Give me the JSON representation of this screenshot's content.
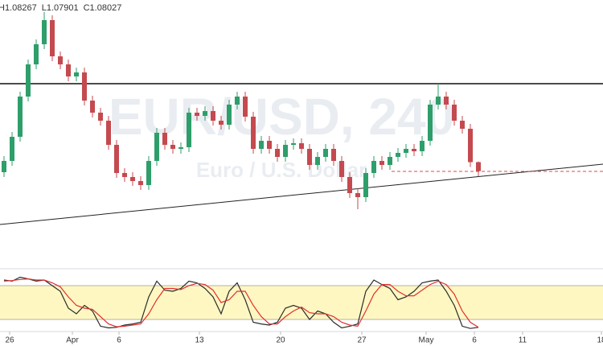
{
  "chart_data": {
    "type": "candlestick",
    "header": [
      "H1.08267",
      "L1.07901",
      "C1.08027"
    ],
    "watermark": "EUR/USD, 240",
    "watermark_subtitle": "Euro / U.S. Dollar",
    "up_color": "#2e9e6b",
    "down_color": "#c44a4f",
    "xlim": [
      -0.5,
      74.5
    ],
    "ylim": [
      1.0568,
      1.12
    ],
    "xticks": [
      {
        "value": 0.7,
        "label": "26"
      },
      {
        "value": 8.5,
        "label": "Apr"
      },
      {
        "value": 14.3,
        "label": "6"
      },
      {
        "value": 24.3,
        "label": "13"
      },
      {
        "value": 34.4,
        "label": "20"
      },
      {
        "value": 44.5,
        "label": "27"
      },
      {
        "value": 52.5,
        "label": "May"
      },
      {
        "value": 58.5,
        "label": "6"
      },
      {
        "value": 64.5,
        "label": "11"
      },
      {
        "value": 74.3,
        "label": "18"
      }
    ],
    "open": [
      1.08,
      1.0828,
      1.0888,
      1.0988,
      1.1068,
      1.1118,
      1.1178,
      1.1088,
      1.1068,
      1.1038,
      1.1048,
      1.0978,
      1.0948,
      1.0928,
      1.0868,
      1.0798,
      1.0788,
      1.0778,
      1.0768,
      1.0828,
      1.0898,
      1.0868,
      1.0858,
      1.0862,
      1.0948,
      1.094,
      1.0952,
      1.0928,
      1.0918,
      1.0968,
      1.0988,
      1.0938,
      1.0858,
      1.0878,
      1.0858,
      1.0838,
      1.0868,
      1.0872,
      1.0858,
      1.0818,
      1.0838,
      1.0858,
      1.0828,
      1.0788,
      1.0748,
      1.0738,
      1.0798,
      1.0828,
      1.0818,
      1.0838,
      1.0848,
      1.0858,
      1.0852,
      1.0878,
      1.0968,
      1.0988,
      1.0968,
      1.0928,
      1.0908,
      1.0825
    ],
    "high": [
      1.084,
      1.09,
      1.1,
      1.108,
      1.113,
      1.1198,
      1.119,
      1.11,
      1.108,
      1.106,
      1.106,
      1.099,
      1.096,
      1.094,
      1.088,
      1.081,
      1.08,
      1.079,
      1.084,
      1.091,
      1.091,
      1.088,
      1.0874,
      1.096,
      1.096,
      1.0964,
      1.0964,
      1.094,
      1.098,
      1.1,
      1.1,
      1.095,
      1.089,
      1.089,
      1.087,
      1.088,
      1.0884,
      1.0884,
      1.087,
      1.085,
      1.087,
      1.087,
      1.084,
      1.08,
      1.076,
      1.081,
      1.084,
      1.084,
      1.085,
      1.086,
      1.087,
      1.087,
      1.089,
      1.098,
      1.102,
      1.1,
      1.098,
      1.094,
      1.092,
      1.08267
    ],
    "low": [
      1.0788,
      1.0816,
      1.0876,
      1.0976,
      1.1056,
      1.1106,
      1.1076,
      1.1056,
      1.1026,
      1.1026,
      1.0966,
      1.0936,
      1.0916,
      1.0856,
      1.0786,
      1.0776,
      1.0766,
      1.0756,
      1.0756,
      1.0816,
      1.0856,
      1.0846,
      1.0846,
      1.085,
      1.0928,
      1.0928,
      1.0916,
      1.0906,
      1.0906,
      1.0956,
      1.0926,
      1.0846,
      1.0846,
      1.0846,
      1.0826,
      1.0826,
      1.0856,
      1.0846,
      1.0806,
      1.0806,
      1.0826,
      1.0816,
      1.0776,
      1.0736,
      1.0708,
      1.0726,
      1.0786,
      1.0806,
      1.0806,
      1.0826,
      1.0836,
      1.084,
      1.084,
      1.0866,
      1.0956,
      1.0956,
      1.0916,
      1.0896,
      1.0813,
      1.07901
    ],
    "close": [
      1.0828,
      1.0888,
      1.0988,
      1.1068,
      1.1118,
      1.1178,
      1.1088,
      1.1068,
      1.1038,
      1.1048,
      1.0978,
      1.0948,
      1.0928,
      1.0868,
      1.0798,
      1.0788,
      1.0778,
      1.0768,
      1.0828,
      1.0898,
      1.0868,
      1.0858,
      1.0862,
      1.0948,
      1.094,
      1.0952,
      1.0928,
      1.0918,
      1.0968,
      1.0988,
      1.0938,
      1.0858,
      1.0878,
      1.0858,
      1.0838,
      1.0868,
      1.0872,
      1.0858,
      1.0818,
      1.0838,
      1.0858,
      1.0828,
      1.0788,
      1.0748,
      1.0738,
      1.0798,
      1.0828,
      1.0818,
      1.0838,
      1.0848,
      1.0858,
      1.0852,
      1.0878,
      1.0968,
      1.0988,
      1.0968,
      1.0928,
      1.0908,
      1.0825,
      1.08027
    ],
    "resistance": {
      "y": 1.102,
      "color": "#111111"
    },
    "trendline": {
      "x": [
        -0.5,
        74.5
      ],
      "y": [
        1.067,
        1.082
      ],
      "color": "#222222"
    },
    "level": {
      "from": 48.2,
      "y": 1.0802,
      "color": "#e04848"
    },
    "indicator": {
      "type": "line",
      "ylim": [
        0,
        100
      ],
      "band": [
        20,
        80
      ],
      "band_color": "#fff7c2",
      "series": [
        {
          "color": "#2b2b2b",
          "values": [
            90,
            88,
            95,
            92,
            88,
            90,
            80,
            70,
            40,
            30,
            45,
            35,
            8,
            5,
            6,
            10,
            12,
            15,
            60,
            88,
            72,
            70,
            75,
            88,
            85,
            75,
            60,
            30,
            70,
            85,
            55,
            15,
            12,
            10,
            15,
            40,
            45,
            40,
            20,
            35,
            30,
            15,
            5,
            8,
            12,
            70,
            90,
            82,
            75,
            55,
            60,
            70,
            85,
            88,
            90,
            70,
            45,
            8,
            4,
            6
          ]
        },
        {
          "color": "#e03030",
          "values": [
            88,
            89,
            91,
            92,
            90,
            90,
            85,
            78,
            60,
            45,
            40,
            38,
            25,
            12,
            7,
            8,
            10,
            12,
            30,
            55,
            75,
            75,
            73,
            80,
            84,
            82,
            72,
            50,
            55,
            70,
            70,
            45,
            25,
            12,
            12,
            25,
            35,
            42,
            32,
            30,
            30,
            25,
            15,
            10,
            8,
            35,
            65,
            82,
            82,
            70,
            62,
            62,
            72,
            82,
            88,
            82,
            65,
            35,
            15,
            6
          ]
        }
      ]
    }
  }
}
